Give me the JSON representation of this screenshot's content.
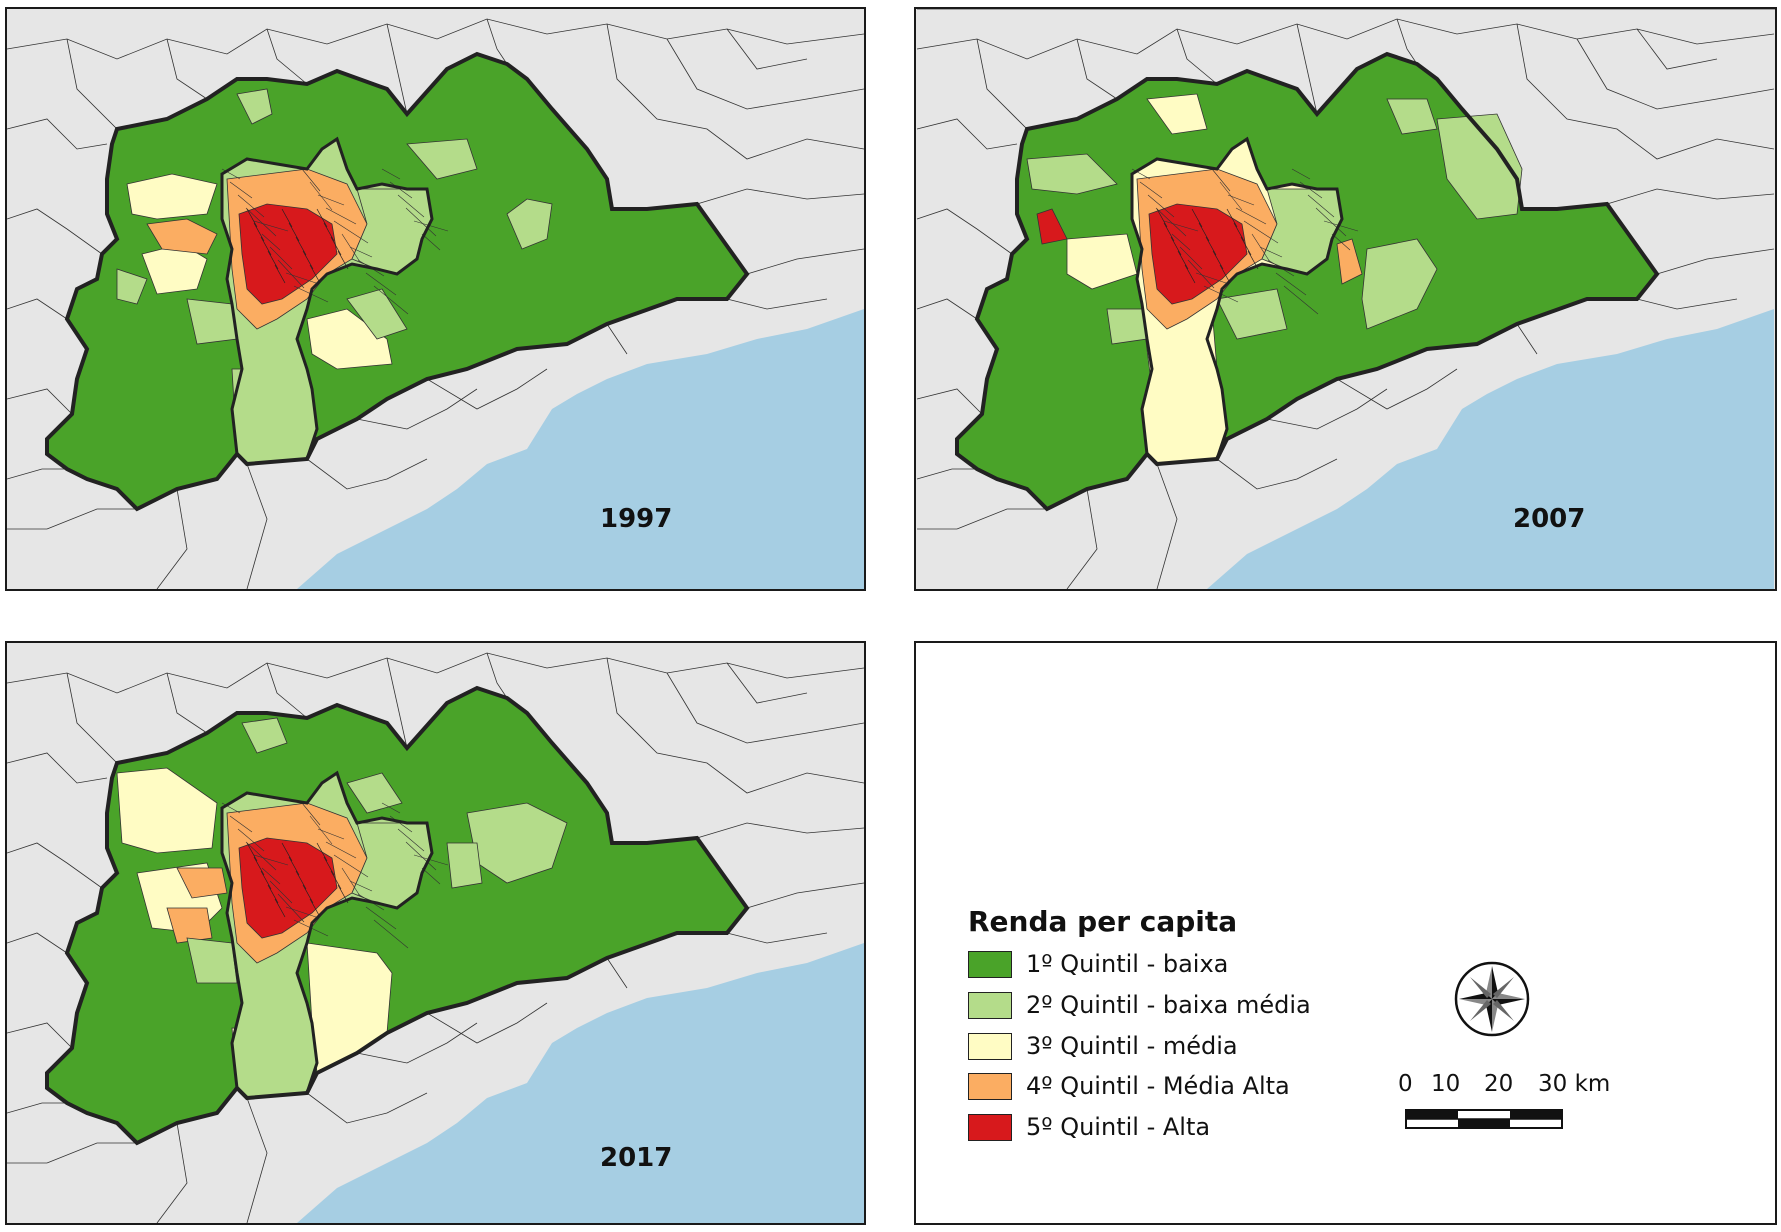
{
  "maps": [
    {
      "year": "1997"
    },
    {
      "year": "2007"
    },
    {
      "year": "2017"
    }
  ],
  "legend": {
    "title": "Renda per capita",
    "items": [
      {
        "label": "1º Quintil - baixa",
        "color": "#4aa329"
      },
      {
        "label": "2º Quintil - baixa média",
        "color": "#b4dc8a"
      },
      {
        "label": "3º Quintil - média",
        "color": "#fffcc4"
      },
      {
        "label": "4º Quintil - Média Alta",
        "color": "#fbad62"
      },
      {
        "label": "5º Quintil - Alta",
        "color": "#d7191c"
      }
    ]
  },
  "scale_bar": {
    "ticks": [
      "0",
      "10",
      "20",
      "30 km"
    ]
  },
  "colors": {
    "sea": "#a6cee3",
    "background_land": "#e6e6e6"
  }
}
